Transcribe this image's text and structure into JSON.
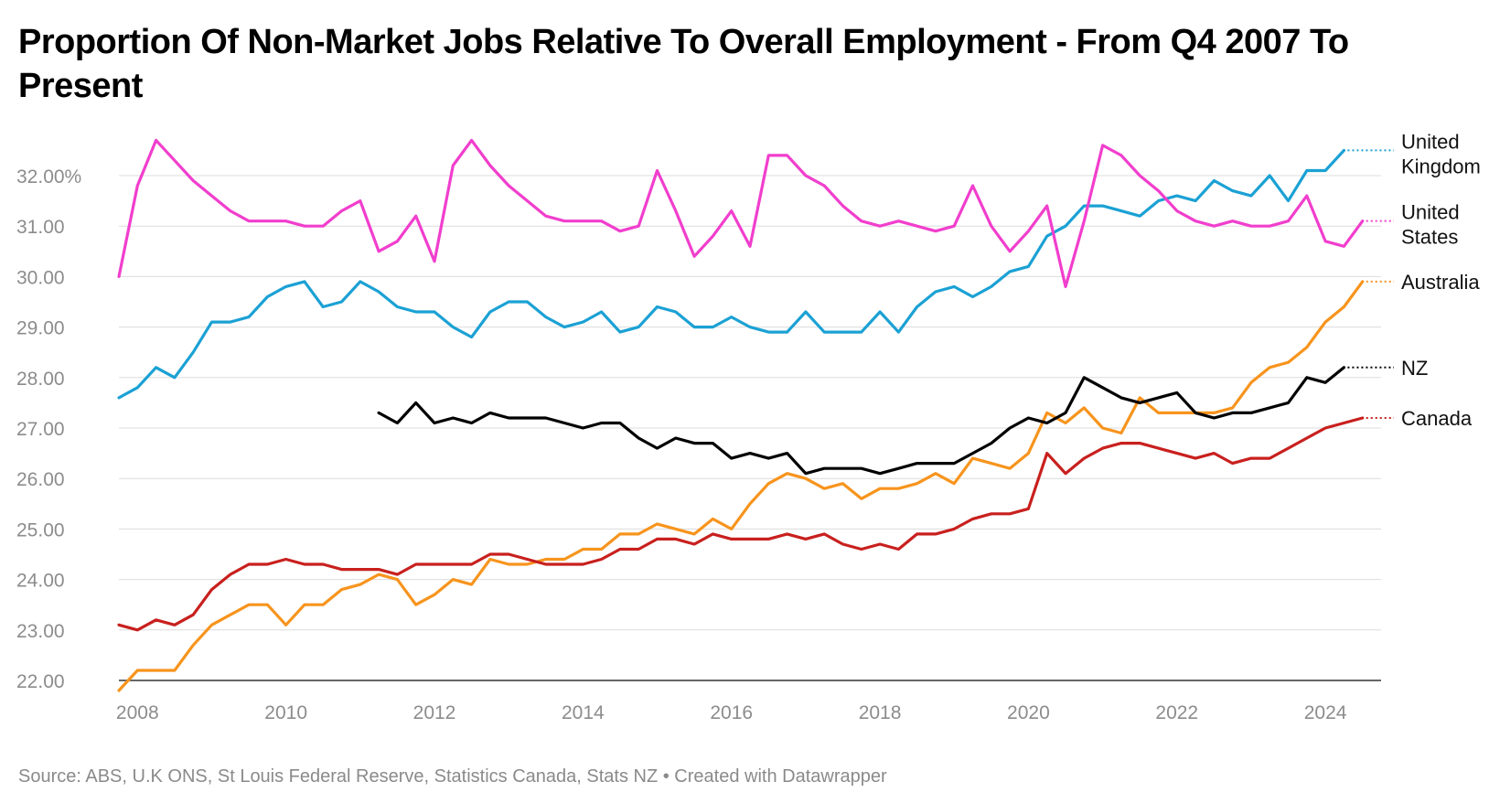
{
  "title": "Proportion Of Non-Market Jobs Relative To Overall Employment - From Q4 2007 To Present",
  "footer": "Source: ABS, U.K ONS, St Louis Federal Reserve, Statistics Canada, Stats NZ • Created with Datawrapper",
  "chart_data": {
    "type": "line",
    "title": "Proportion Of Non-Market Jobs Relative To Overall Employment - From Q4 2007 To Present",
    "xlabel": "",
    "ylabel": "",
    "xlim": [
      2007.75,
      2024.75
    ],
    "ylim": [
      22.0,
      32.0
    ],
    "x_ticks": [
      "2008",
      "2010",
      "2012",
      "2014",
      "2016",
      "2018",
      "2020",
      "2022",
      "2024"
    ],
    "y_ticks": [
      "22.00",
      "23.00",
      "24.00",
      "25.00",
      "26.00",
      "27.00",
      "28.00",
      "29.00",
      "30.00",
      "31.00",
      "32.00%"
    ],
    "grid": "horizontal",
    "legend": "inline labels at line ends",
    "series": [
      {
        "name": "United Kingdom",
        "color": "#1ba1d4",
        "start": 2007.75,
        "step": 0.25,
        "values": [
          27.6,
          27.8,
          28.2,
          28.0,
          28.5,
          29.1,
          29.1,
          29.2,
          29.6,
          29.8,
          29.9,
          29.4,
          29.5,
          29.9,
          29.7,
          29.4,
          29.3,
          29.3,
          29.0,
          28.8,
          29.3,
          29.5,
          29.5,
          29.2,
          29.0,
          29.1,
          29.3,
          28.9,
          29.0,
          29.4,
          29.3,
          29.0,
          29.0,
          29.2,
          29.0,
          28.9,
          28.9,
          29.3,
          28.9,
          28.9,
          28.9,
          29.3,
          28.9,
          29.4,
          29.7,
          29.8,
          29.6,
          29.8,
          30.1,
          30.2,
          30.8,
          31.0,
          31.4,
          31.4,
          31.3,
          31.2,
          31.5,
          31.6,
          31.5,
          31.9,
          31.7,
          31.6,
          32.0,
          31.5,
          32.1,
          32.1,
          32.5
        ]
      },
      {
        "name": "United States",
        "color": "#f13ecd",
        "start": 2007.75,
        "step": 0.25,
        "values": [
          30.0,
          31.8,
          32.7,
          32.3,
          31.9,
          31.6,
          31.3,
          31.1,
          31.1,
          31.1,
          31.0,
          31.0,
          31.3,
          31.5,
          30.5,
          30.7,
          31.2,
          30.3,
          32.2,
          32.7,
          32.2,
          31.8,
          31.5,
          31.2,
          31.1,
          31.1,
          31.1,
          30.9,
          31.0,
          32.1,
          31.3,
          30.4,
          30.8,
          31.3,
          30.6,
          32.4,
          32.4,
          32.0,
          31.8,
          31.4,
          31.1,
          31.0,
          31.1,
          31.0,
          30.9,
          31.0,
          31.8,
          31.0,
          30.5,
          30.9,
          31.4,
          29.8,
          31.1,
          32.6,
          32.4,
          32.0,
          31.7,
          31.3,
          31.1,
          31.0,
          31.1,
          31.0,
          31.0,
          31.1,
          31.6,
          30.7,
          30.6,
          31.1
        ]
      },
      {
        "name": "Australia",
        "color": "#f7941d",
        "start": 2007.75,
        "step": 0.25,
        "values": [
          21.8,
          22.2,
          22.2,
          22.2,
          22.7,
          23.1,
          23.3,
          23.5,
          23.5,
          23.1,
          23.5,
          23.5,
          23.8,
          23.9,
          24.1,
          24.0,
          23.5,
          23.7,
          24.0,
          23.9,
          24.4,
          24.3,
          24.3,
          24.4,
          24.4,
          24.6,
          24.6,
          24.9,
          24.9,
          25.1,
          25.0,
          24.9,
          25.2,
          25.0,
          25.5,
          25.9,
          26.1,
          26.0,
          25.8,
          25.9,
          25.6,
          25.8,
          25.8,
          25.9,
          26.1,
          25.9,
          26.4,
          26.3,
          26.2,
          26.5,
          27.3,
          27.1,
          27.4,
          27.0,
          26.9,
          27.6,
          27.3,
          27.3,
          27.3,
          27.3,
          27.4,
          27.9,
          28.2,
          28.3,
          28.6,
          29.1,
          29.4,
          29.9
        ]
      },
      {
        "name": "NZ",
        "color": "#000000",
        "start": 2011.25,
        "step": 0.25,
        "values": [
          27.3,
          27.1,
          27.5,
          27.1,
          27.2,
          27.1,
          27.3,
          27.2,
          27.2,
          27.2,
          27.1,
          27.0,
          27.1,
          27.1,
          26.8,
          26.6,
          26.8,
          26.7,
          26.7,
          26.4,
          26.5,
          26.4,
          26.5,
          26.1,
          26.2,
          26.2,
          26.2,
          26.1,
          26.2,
          26.3,
          26.3,
          26.3,
          26.5,
          26.7,
          27.0,
          27.2,
          27.1,
          27.3,
          28.0,
          27.8,
          27.6,
          27.5,
          27.6,
          27.7,
          27.3,
          27.2,
          27.3,
          27.3,
          27.4,
          27.5,
          28.0,
          27.9,
          28.2
        ]
      },
      {
        "name": "Canada",
        "color": "#c8201e",
        "start": 2007.75,
        "step": 0.25,
        "values": [
          23.1,
          23.0,
          23.2,
          23.1,
          23.3,
          23.8,
          24.1,
          24.3,
          24.3,
          24.4,
          24.3,
          24.3,
          24.2,
          24.2,
          24.2,
          24.1,
          24.3,
          24.3,
          24.3,
          24.3,
          24.5,
          24.5,
          24.4,
          24.3,
          24.3,
          24.3,
          24.4,
          24.6,
          24.6,
          24.8,
          24.8,
          24.7,
          24.9,
          24.8,
          24.8,
          24.8,
          24.9,
          24.8,
          24.9,
          24.7,
          24.6,
          24.7,
          24.6,
          24.9,
          24.9,
          25.0,
          25.2,
          25.3,
          25.3,
          25.4,
          26.5,
          26.1,
          26.4,
          26.6,
          26.7,
          26.7,
          26.6,
          26.5,
          26.4,
          26.5,
          26.3,
          26.4,
          26.4,
          26.6,
          26.8,
          27.0,
          27.1,
          27.2
        ]
      }
    ],
    "line_labels": [
      {
        "series": "United Kingdom",
        "lines": [
          "United",
          "Kingdom"
        ]
      },
      {
        "series": "United States",
        "lines": [
          "United",
          "States"
        ]
      },
      {
        "series": "Australia",
        "lines": [
          "Australia"
        ]
      },
      {
        "series": "NZ",
        "lines": [
          "NZ"
        ]
      },
      {
        "series": "Canada",
        "lines": [
          "Canada"
        ]
      }
    ]
  }
}
